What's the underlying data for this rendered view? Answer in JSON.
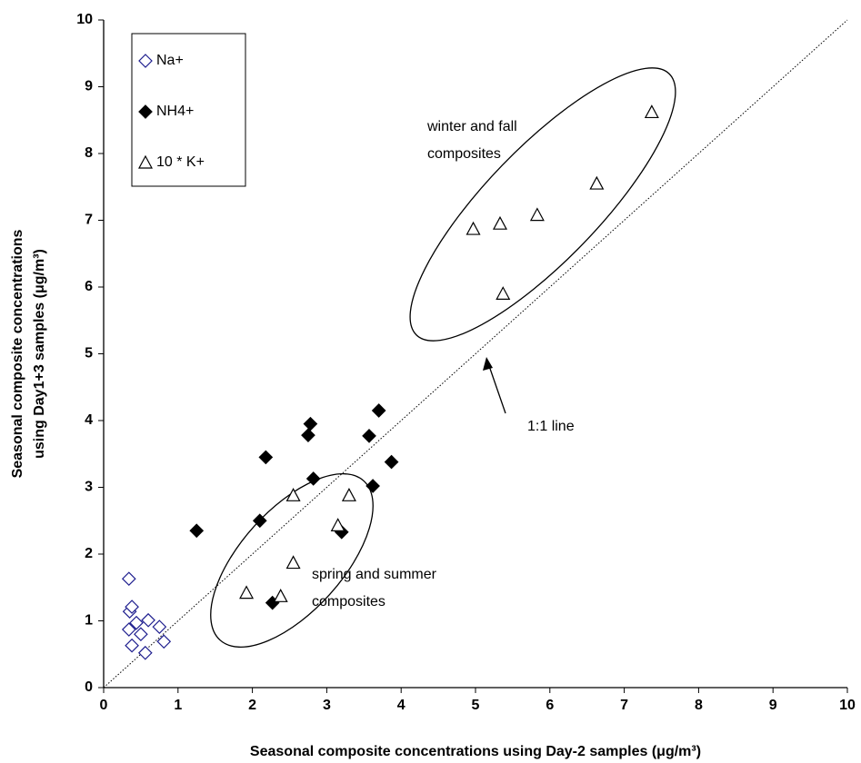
{
  "chart_data": {
    "type": "scatter",
    "xlabel": "Seasonal composite concentrations using Day-2 samples (μg/m³)",
    "ylabel": [
      "Seasonal composite concentrations",
      "using Day1+3 samples (μg/m³)"
    ],
    "xlim": [
      0,
      10
    ],
    "ylim": [
      0,
      10
    ],
    "xticks": [
      0,
      1,
      2,
      3,
      4,
      5,
      6,
      7,
      8,
      9,
      10
    ],
    "yticks": [
      0,
      1,
      2,
      3,
      4,
      5,
      6,
      7,
      8,
      9,
      10
    ],
    "legend": "top-left",
    "reference_line": true,
    "series": [
      {
        "name": "Na+",
        "color": "#1f1f8f",
        "marker": "diamond-open",
        "x": [
          0.34,
          0.35,
          0.38,
          0.34,
          0.38,
          0.44,
          0.5,
          0.56,
          0.6,
          0.75,
          0.81
        ],
        "values": [
          1.63,
          1.14,
          1.21,
          0.87,
          0.63,
          0.97,
          0.8,
          0.52,
          1.01,
          0.91,
          0.69
        ]
      },
      {
        "name": "NH4+",
        "color": "#000000",
        "marker": "diamond",
        "x": [
          1.25,
          2.18,
          2.1,
          2.27,
          2.75,
          2.78,
          2.82,
          3.2,
          3.57,
          3.62,
          3.7,
          3.87
        ],
        "values": [
          2.35,
          3.45,
          2.5,
          1.27,
          3.78,
          3.95,
          3.13,
          2.33,
          3.77,
          3.02,
          4.15,
          3.38
        ]
      },
      {
        "name": "10 * K+",
        "color": "#000000",
        "marker": "triangle-open",
        "x": [
          1.92,
          2.38,
          2.55,
          2.55,
          3.15,
          3.3,
          4.97,
          5.33,
          5.37,
          5.83,
          6.63,
          7.37
        ],
        "values": [
          1.42,
          1.37,
          1.87,
          2.88,
          2.43,
          2.88,
          6.87,
          6.95,
          5.9,
          7.08,
          7.55,
          8.62
        ]
      }
    ],
    "annotations": [
      [
        "winter and fall",
        "composites"
      ],
      [
        "spring and summer",
        "composites"
      ],
      [
        "1:1 line"
      ]
    ]
  }
}
